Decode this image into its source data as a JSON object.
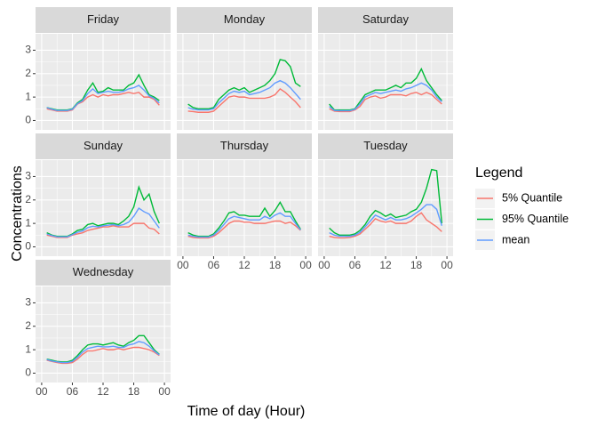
{
  "chart_data": {
    "type": "line",
    "xlabel": "Time of day (Hour)",
    "ylabel": "Concentrations",
    "legend_title": "Legend",
    "x": [
      1,
      2,
      3,
      4,
      5,
      6,
      7,
      8,
      9,
      10,
      11,
      12,
      13,
      14,
      15,
      16,
      17,
      18,
      19,
      20,
      21,
      22,
      23
    ],
    "xlim": [
      -1.2,
      25.2
    ],
    "ylim": [
      -0.4,
      3.7
    ],
    "xticks": [
      {
        "value": 0,
        "label": "00"
      },
      {
        "value": 6,
        "label": "06"
      },
      12,
      18,
      {
        "value": 24,
        "label": "00"
      }
    ],
    "yticks": [
      0,
      1,
      2,
      3
    ],
    "grid": true,
    "series": [
      {
        "name": "5% Quantile",
        "color": "#F8766D"
      },
      {
        "name": "95% Quantile",
        "color": "#00BA38"
      },
      {
        "name": "mean",
        "color": "#619CFF"
      }
    ],
    "facets": [
      {
        "title": "Friday",
        "series": [
          {
            "values": [
              0.5,
              0.45,
              0.4,
              0.4,
              0.4,
              0.45,
              0.7,
              0.8,
              1.0,
              1.1,
              1.0,
              1.1,
              1.05,
              1.1,
              1.1,
              1.15,
              1.2,
              1.15,
              1.2,
              1.0,
              1.0,
              0.9,
              0.65
            ]
          },
          {
            "values": [
              0.55,
              0.5,
              0.45,
              0.45,
              0.45,
              0.5,
              0.75,
              0.9,
              1.3,
              1.6,
              1.2,
              1.25,
              1.4,
              1.3,
              1.3,
              1.3,
              1.5,
              1.6,
              1.95,
              1.5,
              1.1,
              1.0,
              0.85
            ]
          },
          {
            "values": [
              0.55,
              0.48,
              0.43,
              0.43,
              0.43,
              0.48,
              0.72,
              0.85,
              1.15,
              1.35,
              1.15,
              1.2,
              1.25,
              1.2,
              1.2,
              1.25,
              1.35,
              1.4,
              1.5,
              1.3,
              1.05,
              0.95,
              0.75
            ]
          }
        ]
      },
      {
        "title": "Monday",
        "series": [
          {
            "values": [
              0.4,
              0.38,
              0.35,
              0.35,
              0.35,
              0.4,
              0.6,
              0.8,
              1.0,
              1.05,
              1.0,
              1.0,
              0.95,
              0.95,
              0.95,
              0.95,
              1.0,
              1.1,
              1.35,
              1.2,
              1.0,
              0.8,
              0.55
            ]
          },
          {
            "values": [
              0.7,
              0.55,
              0.5,
              0.5,
              0.5,
              0.55,
              0.9,
              1.1,
              1.3,
              1.4,
              1.3,
              1.4,
              1.2,
              1.3,
              1.4,
              1.5,
              1.7,
              2.0,
              2.6,
              2.55,
              2.3,
              1.6,
              1.45
            ]
          },
          {
            "values": [
              0.55,
              0.48,
              0.45,
              0.45,
              0.45,
              0.5,
              0.75,
              0.95,
              1.15,
              1.25,
              1.2,
              1.25,
              1.1,
              1.15,
              1.2,
              1.3,
              1.4,
              1.6,
              1.7,
              1.6,
              1.4,
              1.15,
              0.9
            ]
          }
        ]
      },
      {
        "title": "Saturday",
        "series": [
          {
            "values": [
              0.5,
              0.4,
              0.38,
              0.38,
              0.38,
              0.45,
              0.6,
              0.9,
              1.0,
              1.05,
              0.95,
              1.0,
              1.1,
              1.1,
              1.1,
              1.05,
              1.15,
              1.2,
              1.1,
              1.2,
              1.1,
              0.9,
              0.7
            ]
          },
          {
            "values": [
              0.7,
              0.45,
              0.45,
              0.45,
              0.45,
              0.5,
              0.8,
              1.1,
              1.2,
              1.3,
              1.3,
              1.3,
              1.4,
              1.5,
              1.4,
              1.6,
              1.6,
              1.8,
              2.2,
              1.7,
              1.4,
              1.1,
              0.85
            ]
          },
          {
            "values": [
              0.6,
              0.43,
              0.42,
              0.42,
              0.42,
              0.48,
              0.7,
              1.0,
              1.1,
              1.2,
              1.15,
              1.2,
              1.25,
              1.3,
              1.25,
              1.35,
              1.4,
              1.5,
              1.6,
              1.5,
              1.3,
              1.0,
              0.8
            ]
          }
        ]
      },
      {
        "title": "Sunday",
        "series": [
          {
            "values": [
              0.5,
              0.45,
              0.4,
              0.4,
              0.4,
              0.5,
              0.55,
              0.6,
              0.7,
              0.75,
              0.8,
              0.85,
              0.85,
              0.9,
              0.85,
              0.85,
              0.85,
              1.0,
              1.0,
              1.0,
              0.8,
              0.75,
              0.55
            ]
          },
          {
            "values": [
              0.6,
              0.5,
              0.45,
              0.45,
              0.45,
              0.55,
              0.7,
              0.75,
              0.95,
              1.0,
              0.9,
              0.95,
              1.0,
              1.0,
              0.95,
              1.1,
              1.3,
              1.7,
              2.55,
              2.0,
              2.25,
              1.5,
              1.0
            ]
          },
          {
            "values": [
              0.55,
              0.48,
              0.43,
              0.43,
              0.43,
              0.52,
              0.62,
              0.68,
              0.82,
              0.88,
              0.85,
              0.9,
              0.92,
              0.95,
              0.9,
              0.95,
              1.05,
              1.3,
              1.65,
              1.5,
              1.4,
              1.1,
              0.8
            ]
          }
        ]
      },
      {
        "title": "Thursday",
        "series": [
          {
            "values": [
              0.45,
              0.4,
              0.38,
              0.38,
              0.38,
              0.45,
              0.6,
              0.8,
              1.0,
              1.1,
              1.1,
              1.05,
              1.05,
              1.0,
              1.0,
              1.0,
              1.05,
              1.1,
              1.1,
              1.0,
              1.05,
              0.9,
              0.7
            ]
          },
          {
            "values": [
              0.6,
              0.5,
              0.45,
              0.45,
              0.45,
              0.55,
              0.8,
              1.1,
              1.45,
              1.5,
              1.35,
              1.35,
              1.3,
              1.3,
              1.3,
              1.65,
              1.3,
              1.55,
              1.9,
              1.5,
              1.5,
              1.1,
              0.75
            ]
          },
          {
            "values": [
              0.5,
              0.45,
              0.42,
              0.42,
              0.42,
              0.5,
              0.7,
              0.95,
              1.2,
              1.3,
              1.25,
              1.2,
              1.15,
              1.15,
              1.15,
              1.3,
              1.2,
              1.35,
              1.45,
              1.3,
              1.3,
              1.0,
              0.72
            ]
          }
        ]
      },
      {
        "title": "Tuesday",
        "series": [
          {
            "values": [
              0.45,
              0.4,
              0.38,
              0.38,
              0.4,
              0.45,
              0.55,
              0.75,
              0.95,
              1.2,
              1.1,
              1.05,
              1.1,
              1.0,
              1.0,
              1.0,
              1.1,
              1.3,
              1.45,
              1.15,
              1.0,
              0.85,
              0.65
            ]
          },
          {
            "values": [
              0.8,
              0.6,
              0.5,
              0.5,
              0.5,
              0.55,
              0.7,
              0.95,
              1.3,
              1.55,
              1.45,
              1.3,
              1.4,
              1.25,
              1.3,
              1.35,
              1.5,
              1.6,
              1.9,
              2.5,
              3.3,
              3.25,
              1.0
            ]
          },
          {
            "values": [
              0.6,
              0.5,
              0.45,
              0.45,
              0.45,
              0.5,
              0.62,
              0.85,
              1.1,
              1.35,
              1.25,
              1.15,
              1.25,
              1.15,
              1.15,
              1.2,
              1.3,
              1.45,
              1.6,
              1.8,
              1.8,
              1.6,
              0.9
            ]
          }
        ]
      },
      {
        "title": "Wednesday",
        "series": [
          {
            "values": [
              0.55,
              0.5,
              0.45,
              0.42,
              0.42,
              0.45,
              0.6,
              0.8,
              0.95,
              0.95,
              1.0,
              1.05,
              1.0,
              1.0,
              1.05,
              1.0,
              1.05,
              1.1,
              1.1,
              1.05,
              1.0,
              0.9,
              0.75
            ]
          },
          {
            "values": [
              0.6,
              0.55,
              0.5,
              0.48,
              0.48,
              0.55,
              0.75,
              1.0,
              1.2,
              1.25,
              1.25,
              1.2,
              1.25,
              1.3,
              1.2,
              1.15,
              1.3,
              1.4,
              1.6,
              1.6,
              1.3,
              1.0,
              0.8
            ]
          },
          {
            "values": [
              0.58,
              0.52,
              0.48,
              0.45,
              0.45,
              0.5,
              0.68,
              0.9,
              1.05,
              1.1,
              1.15,
              1.12,
              1.12,
              1.15,
              1.1,
              1.1,
              1.2,
              1.25,
              1.35,
              1.3,
              1.15,
              0.95,
              0.78
            ]
          }
        ]
      }
    ]
  }
}
